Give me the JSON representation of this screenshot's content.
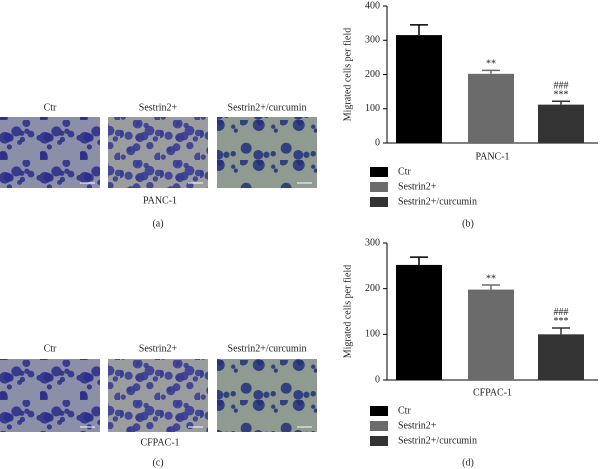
{
  "panels": [
    {
      "images": [
        "Ctr",
        "Sestrin2+",
        "Sestrin2+/curcumin"
      ],
      "cell_line": "PANC-1",
      "label": "(a)"
    },
    {
      "images": [
        "Ctr",
        "Sestrin2+",
        "Sestrin2+/curcumin"
      ],
      "cell_line": "CFPAC-1",
      "label": "(c)"
    }
  ],
  "chart_data": [
    {
      "type": "bar",
      "panel_label": "(b)",
      "ylabel": "Migrated cells per field",
      "xlabel": "PANC-1",
      "categories": [
        "Ctr",
        "Sestrin2+",
        "Sestrin2+/curcumin"
      ],
      "colors": [
        "#000000",
        "#6b6b6b",
        "#333333"
      ],
      "values": [
        315,
        202,
        112
      ],
      "errors": [
        30,
        10,
        10
      ],
      "annotations": [
        null,
        [
          "**"
        ],
        [
          "###",
          "***"
        ]
      ],
      "ylim": [
        0,
        400
      ],
      "yticks": [
        0,
        100,
        200,
        300,
        400
      ]
    },
    {
      "type": "bar",
      "panel_label": "(d)",
      "ylabel": "Migrated cells per field",
      "xlabel": "CFPAC-1",
      "categories": [
        "Ctr",
        "Sestrin2+",
        "Sestrin2+/curcumin"
      ],
      "colors": [
        "#000000",
        "#6b6b6b",
        "#333333"
      ],
      "values": [
        252,
        198,
        100
      ],
      "errors": [
        17,
        10,
        14
      ],
      "annotations": [
        null,
        [
          "**"
        ],
        [
          "###",
          "***"
        ]
      ],
      "ylim": [
        0,
        300
      ],
      "yticks": [
        0,
        100,
        200,
        300
      ]
    }
  ]
}
